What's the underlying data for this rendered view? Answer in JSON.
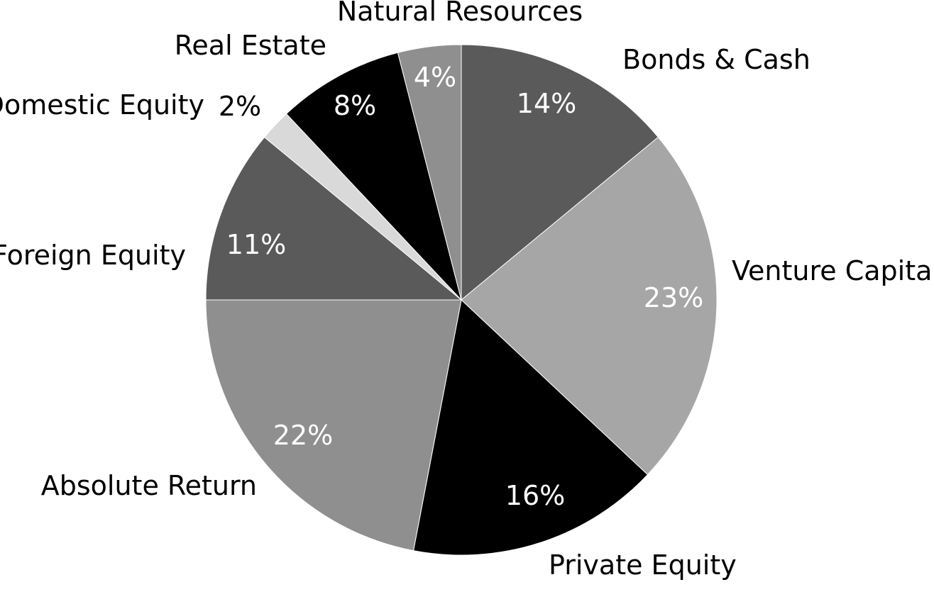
{
  "chart_data": {
    "type": "pie",
    "title": "",
    "start_angle_deg": 0,
    "direction": "clockwise",
    "slices": [
      {
        "label": "Bonds & Cash",
        "value": 14,
        "display": "14%",
        "color": "#5a5a5a",
        "text_color": "#ffffff"
      },
      {
        "label": "Venture Capital",
        "value": 23,
        "display": "23%",
        "color": "#a6a6a6",
        "text_color": "#ffffff"
      },
      {
        "label": "Private Equity",
        "value": 16,
        "display": "16%",
        "color": "#000000",
        "text_color": "#ffffff"
      },
      {
        "label": "Absolute Return",
        "value": 22,
        "display": "22%",
        "color": "#8f8f8f",
        "text_color": "#ffffff"
      },
      {
        "label": "Foreign Equity",
        "value": 11,
        "display": "11%",
        "color": "#5a5a5a",
        "text_color": "#ffffff"
      },
      {
        "label": "Domestic Equity",
        "value": 2,
        "display": "2%",
        "color": "#d9d9d9",
        "text_color": "#000000"
      },
      {
        "label": "Real Estate",
        "value": 8,
        "display": "8%",
        "color": "#000000",
        "text_color": "#ffffff"
      },
      {
        "label": "Natural Resources",
        "value": 4,
        "display": "4%",
        "color": "#8f8f8f",
        "text_color": "#ffffff"
      }
    ]
  }
}
